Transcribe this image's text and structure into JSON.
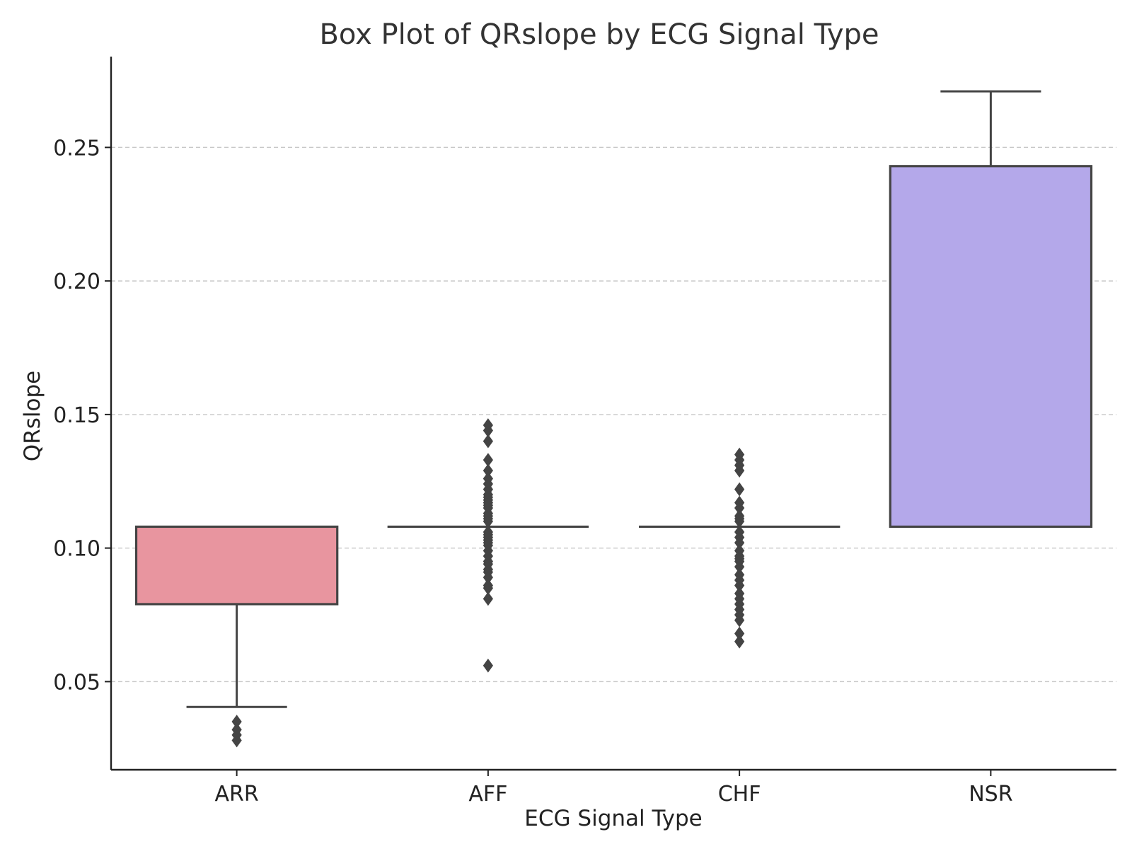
{
  "chart_data": {
    "type": "box",
    "title": "Box Plot of QRslope by ECG Signal Type",
    "xlabel": "ECG Signal Type",
    "ylabel": "QRslope",
    "ylim": [
      0.017,
      0.284
    ],
    "yticks": [
      0.05,
      0.1,
      0.15,
      0.2,
      0.25
    ],
    "ytick_labels": [
      "0.05",
      "0.10",
      "0.15",
      "0.20",
      "0.25"
    ],
    "grid": "horizontal dashed",
    "legend": "none",
    "edge_color": "#444444",
    "categories": [
      "ARR",
      "AFF",
      "CHF",
      "NSR"
    ],
    "boxes": [
      {
        "category": "ARR",
        "color": "#e8959f",
        "q1": 0.079,
        "median": 0.108,
        "q3": 0.108,
        "whisker_low": 0.0405,
        "whisker_high": 0.108,
        "outliers": [
          0.028,
          0.03,
          0.032,
          0.035
        ]
      },
      {
        "category": "AFF",
        "color": "#e2d89a",
        "q1": 0.108,
        "median": 0.108,
        "q3": 0.108,
        "whisker_low": 0.108,
        "whisker_high": 0.108,
        "outliers": [
          0.146,
          0.144,
          0.14,
          0.133,
          0.129,
          0.126,
          0.124,
          0.122,
          0.12,
          0.119,
          0.118,
          0.117,
          0.116,
          0.115,
          0.113,
          0.112,
          0.111,
          0.11,
          0.106,
          0.105,
          0.104,
          0.103,
          0.102,
          0.101,
          0.099,
          0.097,
          0.095,
          0.094,
          0.092,
          0.091,
          0.089,
          0.086,
          0.085,
          0.081,
          0.056
        ]
      },
      {
        "category": "CHF",
        "color": "#9ad0a8",
        "q1": 0.108,
        "median": 0.108,
        "q3": 0.108,
        "whisker_low": 0.108,
        "whisker_high": 0.108,
        "outliers": [
          0.135,
          0.133,
          0.131,
          0.129,
          0.122,
          0.117,
          0.115,
          0.112,
          0.111,
          0.11,
          0.106,
          0.104,
          0.102,
          0.099,
          0.097,
          0.096,
          0.095,
          0.093,
          0.09,
          0.088,
          0.086,
          0.083,
          0.081,
          0.079,
          0.077,
          0.075,
          0.073,
          0.068,
          0.065
        ]
      },
      {
        "category": "NSR",
        "color": "#b4a8ea",
        "q1": 0.108,
        "median": 0.108,
        "q3": 0.243,
        "whisker_low": 0.108,
        "whisker_high": 0.271,
        "outliers": []
      }
    ]
  }
}
